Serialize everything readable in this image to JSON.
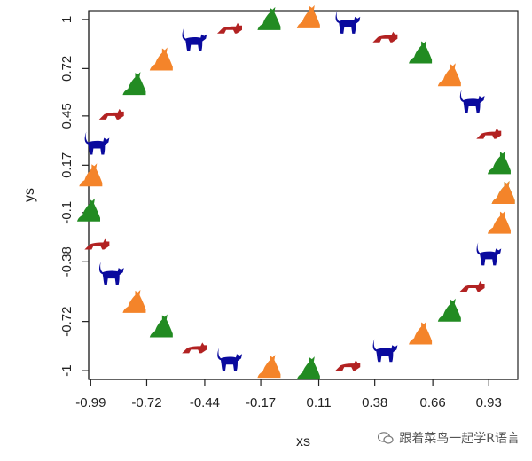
{
  "chart_data": {
    "type": "scatter",
    "marker": "cat-silhouette",
    "xlabel": "xs",
    "ylabel": "ys",
    "xticks": [
      "-0.99",
      "-0.72",
      "-0.44",
      "-0.17",
      "0.11",
      "0.38",
      "0.66",
      "0.93"
    ],
    "yticks": [
      "-1",
      "-0.72",
      "-0.38",
      "-0.1",
      "0.17",
      "0.45",
      "0.72",
      "1"
    ],
    "xlim": [
      -1.0,
      1.07
    ],
    "ylim": [
      -1.05,
      1.05
    ],
    "colors": {
      "darkred": "#b22222",
      "green": "#228b22",
      "orange": "#f4842a",
      "blue": "#0a0a9e"
    },
    "points": [
      {
        "x": 1.0,
        "y": 0.0,
        "color": "green",
        "pose": "sit"
      },
      {
        "x": 0.98,
        "y": -0.17,
        "color": "orange",
        "pose": "sit"
      },
      {
        "x": 0.93,
        "y": -0.35,
        "color": "blue",
        "pose": "stand"
      },
      {
        "x": 0.85,
        "y": -0.52,
        "color": "darkred",
        "pose": "stretch"
      },
      {
        "x": 0.74,
        "y": -0.67,
        "color": "green",
        "pose": "sit"
      },
      {
        "x": 0.6,
        "y": -0.8,
        "color": "orange",
        "pose": "sit"
      },
      {
        "x": 0.43,
        "y": -0.9,
        "color": "blue",
        "pose": "stand"
      },
      {
        "x": 0.25,
        "y": -0.97,
        "color": "darkred",
        "pose": "stretch"
      },
      {
        "x": 0.06,
        "y": -1.0,
        "color": "green",
        "pose": "sit"
      },
      {
        "x": -0.13,
        "y": -0.99,
        "color": "orange",
        "pose": "sit"
      },
      {
        "x": -0.32,
        "y": -0.95,
        "color": "blue",
        "pose": "stand"
      },
      {
        "x": -0.49,
        "y": -0.87,
        "color": "darkred",
        "pose": "stretch"
      },
      {
        "x": -0.65,
        "y": -0.76,
        "color": "green",
        "pose": "sit"
      },
      {
        "x": -0.78,
        "y": -0.62,
        "color": "orange",
        "pose": "sit"
      },
      {
        "x": -0.89,
        "y": -0.46,
        "color": "blue",
        "pose": "stand"
      },
      {
        "x": -0.96,
        "y": -0.28,
        "color": "darkred",
        "pose": "stretch"
      },
      {
        "x": -1.0,
        "y": -0.1,
        "color": "green",
        "pose": "sit"
      },
      {
        "x": -0.99,
        "y": 0.1,
        "color": "orange",
        "pose": "sit"
      },
      {
        "x": -0.96,
        "y": 0.28,
        "color": "blue",
        "pose": "stand"
      },
      {
        "x": -0.89,
        "y": 0.46,
        "color": "darkred",
        "pose": "stretch"
      },
      {
        "x": -0.78,
        "y": 0.62,
        "color": "green",
        "pose": "sit"
      },
      {
        "x": -0.65,
        "y": 0.76,
        "color": "orange",
        "pose": "sit"
      },
      {
        "x": -0.49,
        "y": 0.87,
        "color": "blue",
        "pose": "stand"
      },
      {
        "x": -0.32,
        "y": 0.95,
        "color": "darkred",
        "pose": "stretch"
      },
      {
        "x": -0.13,
        "y": 0.99,
        "color": "green",
        "pose": "sit"
      },
      {
        "x": 0.06,
        "y": 1.0,
        "color": "orange",
        "pose": "sit"
      },
      {
        "x": 0.25,
        "y": 0.97,
        "color": "blue",
        "pose": "stand"
      },
      {
        "x": 0.43,
        "y": 0.9,
        "color": "darkred",
        "pose": "stretch"
      },
      {
        "x": 0.6,
        "y": 0.8,
        "color": "green",
        "pose": "sit"
      },
      {
        "x": 0.74,
        "y": 0.67,
        "color": "orange",
        "pose": "sit"
      },
      {
        "x": 0.85,
        "y": 0.52,
        "color": "blue",
        "pose": "stand"
      },
      {
        "x": 0.93,
        "y": 0.35,
        "color": "darkred",
        "pose": "stretch"
      },
      {
        "x": 0.98,
        "y": 0.17,
        "color": "green",
        "pose": "sit"
      },
      {
        "x": 1.0,
        "y": 0.0,
        "color": "orange",
        "pose": "sit"
      }
    ]
  },
  "watermark": {
    "text": "跟着菜鸟一起学R语言",
    "icon": "wechat-icon"
  }
}
